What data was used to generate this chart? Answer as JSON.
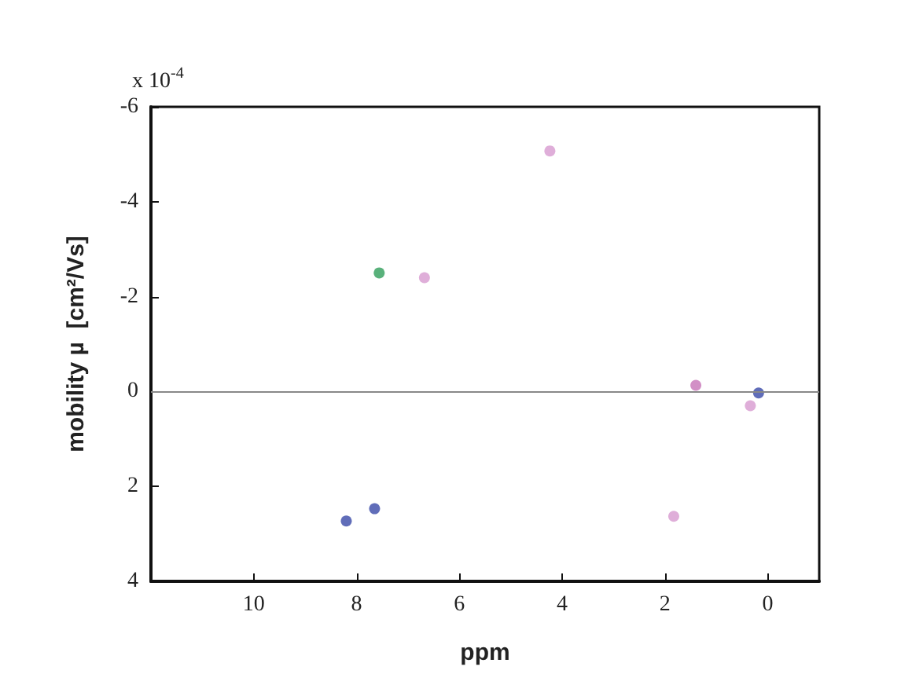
{
  "chart_data": {
    "type": "scatter",
    "xlabel": "ppm",
    "ylabel": "mobility µ  [cm²/Vs]",
    "annotations": [
      "x 10$^{-4}$"
    ],
    "x": [
      7.56,
      6.68,
      4.24,
      7.65,
      8.2,
      1.4,
      0.18,
      0.34,
      1.83
    ],
    "values": [
      -2.5,
      -2.4,
      -5.07,
      2.47,
      2.73,
      -0.13,
      0.03,
      0.3,
      2.63
    ],
    "colors": [
      "#2f9e5a",
      "#d79ad0",
      "#d79ad0",
      "#3848a8",
      "#3848a8",
      "#c774b8",
      "#3848a8",
      "#d79ad0",
      "#d79ad0"
    ],
    "xlim": [
      12,
      -1
    ],
    "xticks": [
      10,
      8,
      6,
      4,
      2,
      0
    ],
    "ylim": [
      4,
      -6
    ],
    "yticks": [
      -6,
      -4,
      -2,
      0,
      2,
      4
    ],
    "ref_lines": [
      {
        "axis": "y",
        "value": 0,
        "color": "#888888"
      }
    ],
    "marker": "circle",
    "grid": false
  }
}
